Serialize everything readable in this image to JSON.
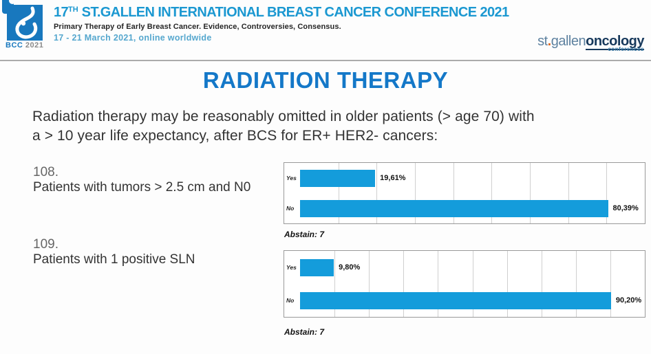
{
  "header": {
    "logo": {
      "bcc": "BCC",
      "year": "2021"
    },
    "title_prefix": "17",
    "title_sup": "TH",
    "title_rest": " ST.GALLEN INTERNATIONAL BREAST CANCER CONFERENCE 2021",
    "subtitle": "Primary Therapy of Early Breast Cancer. Evidence, Controversies, Consensus.",
    "dates": "17 - 21 March 2021, online worldwide",
    "org_logo": {
      "st": "st",
      "dot": ".",
      "gallen": "gallen",
      "oncology": "oncology",
      "conferences": "conferences"
    }
  },
  "main": {
    "title": "RADIATION THERAPY",
    "question_line1": "Radiation therapy may be reasonably omitted in older patients (> age 70)  with",
    "question_line2": "a > 10 year life expectancy, after BCS for ER+ HER2- cancers:",
    "items": [
      {
        "number": "108.",
        "label": "Patients with tumors > 2.5 cm and N0"
      },
      {
        "number": "109.",
        "label": "Patients with 1 positive SLN"
      }
    ]
  },
  "chart_data": [
    {
      "type": "bar",
      "orientation": "horizontal",
      "question_ref": "108",
      "categories": [
        "Yes",
        "No"
      ],
      "values": [
        19.61,
        80.39
      ],
      "value_labels": [
        "19,61%",
        "80,39%"
      ],
      "abstain_label": "Abstain: 7",
      "xlim": [
        0,
        90
      ],
      "gridline_step": 10,
      "grid": true,
      "bar_color": "#149CDB"
    },
    {
      "type": "bar",
      "orientation": "horizontal",
      "question_ref": "109",
      "categories": [
        "Yes",
        "No"
      ],
      "values": [
        9.8,
        90.2
      ],
      "value_labels": [
        "9,80%",
        "90,20%"
      ],
      "abstain_label": "Abstain: 7",
      "xlim": [
        0,
        100
      ],
      "gridline_step": 10,
      "grid": true,
      "bar_color": "#149CDB"
    }
  ],
  "colors": {
    "conference_title_blue": "#1B98D1",
    "dates_blue": "#55A7CE",
    "main_title_blue": "#1478C8",
    "bar_blue": "#149CDB",
    "logo_square_blue": "#1878BE"
  }
}
